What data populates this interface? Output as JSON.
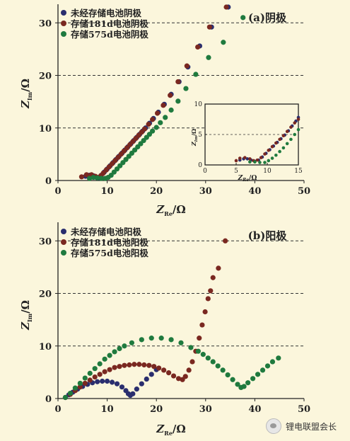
{
  "chart_data": [
    {
      "type": "scatter",
      "title": "(a)阴极",
      "xlabel_main": "Z",
      "xlabel_sub": "Re",
      "xlabel_unit": "/Ω",
      "ylabel_main": "Z",
      "ylabel_sub": "Im",
      "ylabel_unit": "/Ω",
      "xlim": [
        0,
        50
      ],
      "ylim": [
        0,
        33
      ],
      "xticks": [
        "0",
        "10",
        "20",
        "30",
        "40",
        "50"
      ],
      "yticks": [
        "0",
        "10",
        "20",
        "30"
      ],
      "grid_y_dashed": [
        10,
        20,
        30
      ],
      "legend_position": "top-left",
      "series": [
        {
          "name": "未经存储电池阴极",
          "color": "#2a2e6e",
          "points": [
            [
              5.6,
              0.8
            ],
            [
              6.4,
              1.0
            ],
            [
              7.2,
              0.9
            ],
            [
              7.8,
              0.6
            ],
            [
              8.3,
              0.5
            ],
            [
              8.8,
              1.0
            ],
            [
              9.4,
              1.6
            ],
            [
              10.0,
              2.2
            ],
            [
              10.6,
              2.8
            ],
            [
              11.2,
              3.4
            ],
            [
              11.8,
              4.0
            ],
            [
              12.4,
              4.6
            ],
            [
              13.0,
              5.2
            ],
            [
              13.6,
              5.8
            ],
            [
              14.2,
              6.4
            ],
            [
              14.8,
              7.0
            ],
            [
              15.4,
              7.6
            ],
            [
              16.0,
              8.2
            ],
            [
              16.6,
              8.8
            ],
            [
              17.2,
              9.4
            ],
            [
              17.8,
              10.0
            ],
            [
              18.6,
              10.9
            ],
            [
              19.4,
              11.8
            ],
            [
              20.4,
              13.0
            ],
            [
              21.6,
              14.5
            ],
            [
              23.0,
              16.4
            ],
            [
              24.6,
              18.8
            ],
            [
              26.4,
              21.6
            ],
            [
              28.8,
              25.6
            ],
            [
              31.2,
              29.2
            ],
            [
              34.6,
              33.0
            ]
          ]
        },
        {
          "name": "存储181d电池阴极",
          "color": "#7a2820",
          "points": [
            [
              4.8,
              0.7
            ],
            [
              5.8,
              1.1
            ],
            [
              6.8,
              1.1
            ],
            [
              7.6,
              0.8
            ],
            [
              8.2,
              0.6
            ],
            [
              8.7,
              0.9
            ],
            [
              9.2,
              1.4
            ],
            [
              9.8,
              2.0
            ],
            [
              10.4,
              2.6
            ],
            [
              11.0,
              3.2
            ],
            [
              11.6,
              3.8
            ],
            [
              12.2,
              4.4
            ],
            [
              12.8,
              5.0
            ],
            [
              13.4,
              5.6
            ],
            [
              14.0,
              6.2
            ],
            [
              14.6,
              6.8
            ],
            [
              15.2,
              7.4
            ],
            [
              15.8,
              8.0
            ],
            [
              16.4,
              8.6
            ],
            [
              17.0,
              9.2
            ],
            [
              17.6,
              9.8
            ],
            [
              18.4,
              10.7
            ],
            [
              19.2,
              11.6
            ],
            [
              20.2,
              12.8
            ],
            [
              21.4,
              14.3
            ],
            [
              22.8,
              16.2
            ],
            [
              24.4,
              18.8
            ],
            [
              26.2,
              21.8
            ],
            [
              28.4,
              25.4
            ],
            [
              30.8,
              29.2
            ],
            [
              34.2,
              33.0
            ]
          ]
        },
        {
          "name": "存储575d电池阴极",
          "color": "#1f7a3e",
          "points": [
            [
              6.4,
              0.4
            ],
            [
              7.2,
              0.6
            ],
            [
              8.0,
              0.5
            ],
            [
              8.8,
              0.4
            ],
            [
              9.6,
              0.4
            ],
            [
              10.2,
              0.6
            ],
            [
              10.8,
              1.0
            ],
            [
              11.4,
              1.6
            ],
            [
              12.0,
              2.2
            ],
            [
              12.6,
              2.8
            ],
            [
              13.2,
              3.4
            ],
            [
              13.8,
              4.0
            ],
            [
              14.4,
              4.6
            ],
            [
              15.0,
              5.2
            ],
            [
              15.6,
              5.8
            ],
            [
              16.2,
              6.4
            ],
            [
              16.8,
              7.0
            ],
            [
              17.4,
              7.6
            ],
            [
              18.0,
              8.2
            ],
            [
              18.6,
              8.8
            ],
            [
              19.2,
              9.4
            ],
            [
              20.0,
              10.1
            ],
            [
              20.8,
              11.0
            ],
            [
              21.8,
              12.0
            ],
            [
              23.0,
              13.4
            ],
            [
              24.4,
              15.1
            ],
            [
              26.0,
              17.5
            ],
            [
              28.0,
              20.2
            ],
            [
              30.6,
              23.4
            ],
            [
              33.6,
              26.3
            ],
            [
              37.6,
              31.0
            ]
          ]
        }
      ],
      "inset": {
        "xlabel_main": "Z",
        "xlabel_sub": "Re",
        "xlabel_unit": "/Ω",
        "ylabel_main": "Z",
        "ylabel_sub": "Im",
        "ylabel_unit": "/Ω",
        "xlim": [
          0,
          15
        ],
        "ylim": [
          0,
          10
        ],
        "xticks": [
          "0",
          "5",
          "10",
          "15"
        ],
        "yticks": [
          "0",
          "5",
          "10"
        ],
        "series": [
          {
            "name": "未经存储电池阴极",
            "color": "#2a2e6e",
            "points": [
              [
                5.6,
                0.8
              ],
              [
                6.2,
                1.0
              ],
              [
                6.8,
                1.0
              ],
              [
                7.4,
                0.8
              ],
              [
                8.0,
                0.6
              ],
              [
                8.6,
                0.8
              ],
              [
                9.2,
                1.3
              ],
              [
                9.8,
                1.9
              ],
              [
                10.4,
                2.5
              ],
              [
                11.0,
                3.1
              ],
              [
                11.6,
                3.7
              ],
              [
                12.2,
                4.3
              ],
              [
                12.8,
                4.9
              ],
              [
                13.4,
                5.6
              ],
              [
                14.0,
                6.4
              ],
              [
                14.6,
                7.2
              ],
              [
                15.0,
                7.8
              ]
            ]
          },
          {
            "name": "存储181d电池阴极",
            "color": "#7a2820",
            "points": [
              [
                5.0,
                0.7
              ],
              [
                5.6,
                1.1
              ],
              [
                6.4,
                1.2
              ],
              [
                7.2,
                1.0
              ],
              [
                7.8,
                0.7
              ],
              [
                8.4,
                0.8
              ],
              [
                9.0,
                1.2
              ],
              [
                9.6,
                1.8
              ],
              [
                10.2,
                2.4
              ],
              [
                10.8,
                3.0
              ],
              [
                11.4,
                3.6
              ],
              [
                12.0,
                4.2
              ],
              [
                12.6,
                4.8
              ],
              [
                13.2,
                5.5
              ],
              [
                13.8,
                6.2
              ],
              [
                14.4,
                6.9
              ],
              [
                15.0,
                7.5
              ]
            ]
          },
          {
            "name": "存储575d电池阴极",
            "color": "#1f7a3e",
            "points": [
              [
                7.2,
                0.5
              ],
              [
                8.0,
                0.5
              ],
              [
                8.8,
                0.4
              ],
              [
                9.6,
                0.4
              ],
              [
                10.2,
                0.7
              ],
              [
                10.8,
                1.1
              ],
              [
                11.4,
                1.6
              ],
              [
                12.0,
                2.2
              ],
              [
                12.6,
                2.8
              ],
              [
                13.2,
                3.5
              ],
              [
                13.8,
                4.2
              ],
              [
                14.4,
                5.0
              ],
              [
                15.0,
                5.8
              ]
            ]
          }
        ]
      }
    },
    {
      "type": "scatter",
      "title": "(b)阳极",
      "xlabel_main": "Z",
      "xlabel_sub": "Re",
      "xlabel_unit": "/Ω",
      "ylabel_main": "Z",
      "ylabel_sub": "Im",
      "ylabel_unit": "/Ω",
      "xlim": [
        0,
        50
      ],
      "ylim": [
        0,
        33
      ],
      "xticks": [
        "0",
        "10",
        "20",
        "30",
        "40",
        "50"
      ],
      "yticks": [
        "0",
        "10",
        "20",
        "30"
      ],
      "grid_y_dashed": [
        10,
        20,
        30
      ],
      "legend_position": "top-left",
      "series": [
        {
          "name": "未经存储电池阳极",
          "color": "#2a2e6e",
          "points": [
            [
              1.5,
              0.2
            ],
            [
              2.2,
              0.7
            ],
            [
              3.0,
              1.2
            ],
            [
              4.0,
              1.8
            ],
            [
              5.0,
              2.3
            ],
            [
              6.0,
              2.7
            ],
            [
              7.0,
              3.0
            ],
            [
              8.0,
              3.2
            ],
            [
              9.0,
              3.3
            ],
            [
              10.0,
              3.3
            ],
            [
              11.0,
              3.1
            ],
            [
              12.0,
              2.8
            ],
            [
              13.0,
              2.2
            ],
            [
              13.8,
              1.5
            ],
            [
              14.3,
              0.9
            ],
            [
              14.7,
              0.6
            ],
            [
              15.2,
              0.9
            ],
            [
              16.0,
              1.8
            ],
            [
              17.0,
              2.8
            ],
            [
              18.0,
              3.7
            ],
            [
              19.0,
              4.6
            ],
            [
              20.0,
              5.5
            ]
          ]
        },
        {
          "name": "存储181d电池阳极",
          "color": "#7a2820",
          "points": [
            [
              1.5,
              0.2
            ],
            [
              2.5,
              0.8
            ],
            [
              3.5,
              1.5
            ],
            [
              4.5,
              2.2
            ],
            [
              5.5,
              2.9
            ],
            [
              6.5,
              3.5
            ],
            [
              7.5,
              4.1
            ],
            [
              8.5,
              4.6
            ],
            [
              9.5,
              5.1
            ],
            [
              10.5,
              5.5
            ],
            [
              11.5,
              5.9
            ],
            [
              12.5,
              6.1
            ],
            [
              13.5,
              6.3
            ],
            [
              14.5,
              6.4
            ],
            [
              15.5,
              6.5
            ],
            [
              16.5,
              6.5
            ],
            [
              17.5,
              6.4
            ],
            [
              18.5,
              6.3
            ],
            [
              19.5,
              6.1
            ],
            [
              20.5,
              5.8
            ],
            [
              21.5,
              5.4
            ],
            [
              22.5,
              4.9
            ],
            [
              23.5,
              4.3
            ],
            [
              24.5,
              3.8
            ],
            [
              25.3,
              3.6
            ],
            [
              25.9,
              4.2
            ],
            [
              26.6,
              5.4
            ],
            [
              27.3,
              7.0
            ],
            [
              28.0,
              9.0
            ],
            [
              28.7,
              11.5
            ],
            [
              29.3,
              14.0
            ],
            [
              29.9,
              16.5
            ],
            [
              30.5,
              19.0
            ],
            [
              31.0,
              20.5
            ],
            [
              31.5,
              23.0
            ],
            [
              32.6,
              24.8
            ],
            [
              34.0,
              30.0
            ]
          ]
        },
        {
          "name": "存储575d电池阳极",
          "color": "#1f7a3e",
          "points": [
            [
              1.5,
              0.2
            ],
            [
              2.5,
              1.0
            ],
            [
              3.5,
              2.0
            ],
            [
              4.5,
              2.9
            ],
            [
              5.5,
              3.9
            ],
            [
              6.5,
              4.8
            ],
            [
              7.5,
              5.7
            ],
            [
              8.5,
              6.6
            ],
            [
              9.5,
              7.5
            ],
            [
              10.5,
              8.2
            ],
            [
              11.5,
              8.9
            ],
            [
              12.5,
              9.5
            ],
            [
              13.5,
              10.0
            ],
            [
              15.0,
              10.6
            ],
            [
              17.0,
              11.2
            ],
            [
              19.0,
              11.5
            ],
            [
              21.0,
              11.5
            ],
            [
              23.0,
              11.2
            ],
            [
              25.0,
              10.6
            ],
            [
              27.0,
              9.7
            ],
            [
              28.5,
              9.0
            ],
            [
              29.5,
              8.4
            ],
            [
              30.5,
              7.7
            ],
            [
              31.5,
              7.0
            ],
            [
              32.5,
              6.2
            ],
            [
              33.5,
              5.4
            ],
            [
              34.5,
              4.5
            ],
            [
              35.5,
              3.6
            ],
            [
              36.5,
              2.7
            ],
            [
              37.2,
              2.1
            ],
            [
              37.8,
              2.3
            ],
            [
              38.6,
              3.0
            ],
            [
              39.6,
              3.8
            ],
            [
              40.6,
              4.6
            ],
            [
              41.6,
              5.4
            ],
            [
              42.6,
              6.2
            ],
            [
              43.6,
              7.0
            ],
            [
              44.8,
              7.7
            ]
          ]
        }
      ]
    }
  ],
  "watermark": {
    "text": "锂电联盟会长",
    "icon": "wechat-icon"
  }
}
